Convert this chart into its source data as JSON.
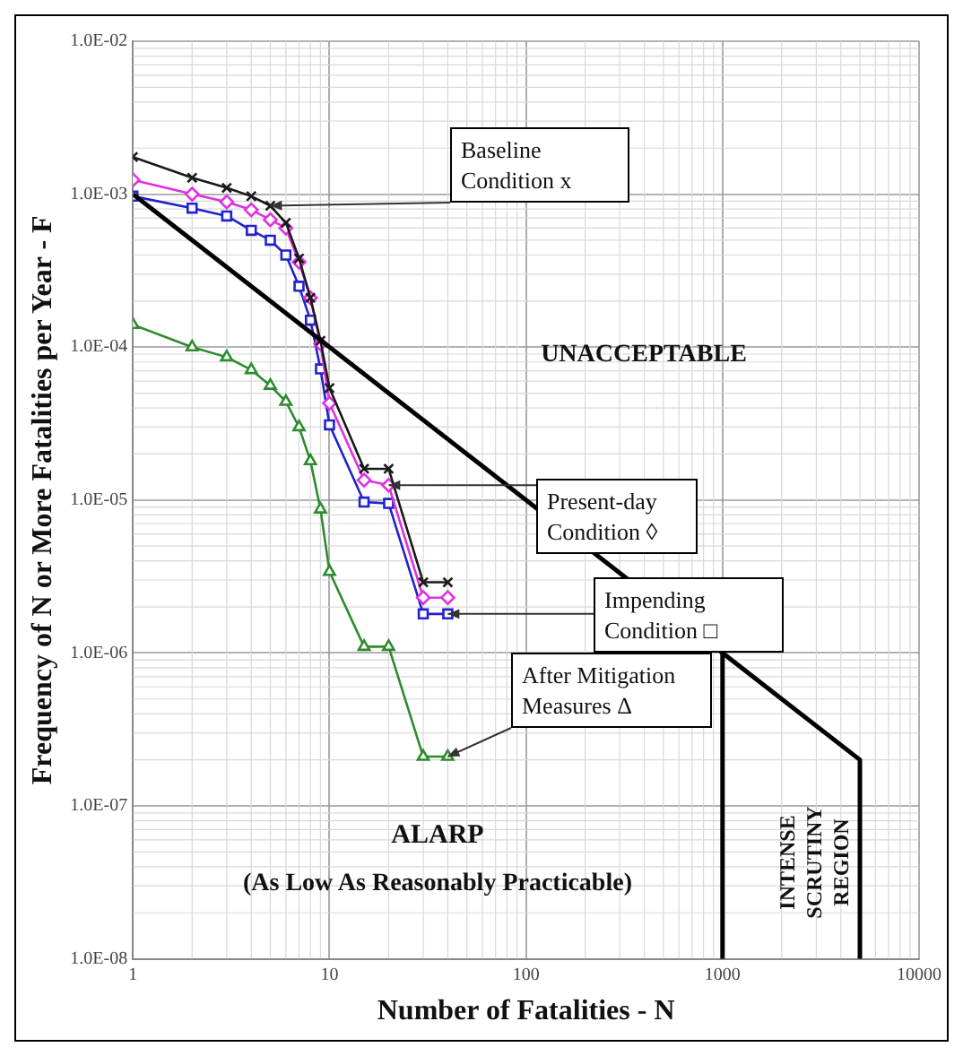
{
  "chart_data": {
    "type": "line",
    "xlabel": "Number of Fatalities - N",
    "ylabel": "Frequency of N or More Fatalities per Year - F",
    "log": "xy",
    "grid": true,
    "legend": false,
    "xlim": [
      1,
      10000
    ],
    "xticks": [
      1,
      10,
      100,
      1000,
      10000
    ],
    "ylim": [
      1e-08,
      0.01
    ],
    "yticks": [
      {
        "value": 1e-08,
        "label": "1.0E-08"
      },
      {
        "value": 1e-07,
        "label": "1.0E-07"
      },
      {
        "value": 1e-06,
        "label": "1.0E-06"
      },
      {
        "value": 1e-05,
        "label": "1.0E-05"
      },
      {
        "value": 0.0001,
        "label": "1.0E-04"
      },
      {
        "value": 0.001,
        "label": "1.0E-03"
      },
      {
        "value": 0.01,
        "label": "1.0E-02"
      }
    ],
    "series": [
      {
        "color": "#000000",
        "marker": "none",
        "x": [
          1,
          5000,
          5000
        ],
        "values": [
          0.001,
          2e-07,
          1e-08
        ]
      },
      {
        "color": "#000000",
        "marker": "none",
        "x": [
          1000,
          1000
        ],
        "values": [
          1e-06,
          1e-08
        ]
      },
      {
        "color": "#1a1a1a",
        "marker": "cross",
        "x": [
          1,
          2,
          3,
          4,
          5,
          6,
          7,
          8,
          9,
          10,
          15,
          20,
          30,
          40
        ],
        "values": [
          0.00175,
          0.00128,
          0.0011,
          0.00097,
          0.00084,
          0.00065,
          0.00038,
          0.00021,
          0.00011,
          5.4e-05,
          1.6e-05,
          1.6e-05,
          2.9e-06,
          2.9e-06
        ]
      },
      {
        "color": "#e030e0",
        "marker": "diamond",
        "x": [
          1,
          2,
          3,
          4,
          5,
          6,
          7,
          8,
          9,
          10,
          15,
          20,
          30,
          40
        ],
        "values": [
          0.00124,
          0.001,
          0.00089,
          0.00079,
          0.00068,
          0.0006,
          0.00036,
          0.00021,
          0.000105,
          4.3e-05,
          1.35e-05,
          1.25e-05,
          2.3e-06,
          2.3e-06
        ]
      },
      {
        "color": "#2222cc",
        "marker": "square",
        "x": [
          1,
          2,
          3,
          4,
          5,
          6,
          7,
          8,
          9,
          10,
          15,
          20,
          30,
          40
        ],
        "values": [
          0.00097,
          0.00081,
          0.00072,
          0.00058,
          0.0005,
          0.0004,
          0.00025,
          0.00015,
          7.2e-05,
          3.1e-05,
          9.7e-06,
          9.5e-06,
          1.8e-06,
          1.8e-06
        ]
      },
      {
        "color": "#2e8b2e",
        "marker": "triangle",
        "x": [
          1,
          2,
          3,
          4,
          5,
          6,
          7,
          8,
          9,
          10,
          15,
          20,
          30,
          40
        ],
        "values": [
          0.00014,
          0.0001,
          8.6e-05,
          7.1e-05,
          5.6e-05,
          4.4e-05,
          3e-05,
          1.8e-05,
          8.7e-06,
          3.4e-06,
          1.1e-06,
          1.1e-06,
          2.1e-07,
          2.1e-07
        ]
      }
    ],
    "annotations": [
      {
        "text": "Baseline Condition x",
        "x": 5,
        "y": 0.00084
      },
      {
        "text": "Present-day Condition ◊",
        "x": 20,
        "y": 1.25e-05
      },
      {
        "text": "Impending Condition □",
        "x": 40,
        "y": 1.8e-06
      },
      {
        "text": "After Mitigation Measures Δ",
        "x": 40,
        "y": 2.1e-07
      },
      "UNACCEPTABLE",
      "ALARP",
      "(As Low As Reasonably Practicable)",
      "INTENSE SCRUTINY REGION"
    ]
  }
}
